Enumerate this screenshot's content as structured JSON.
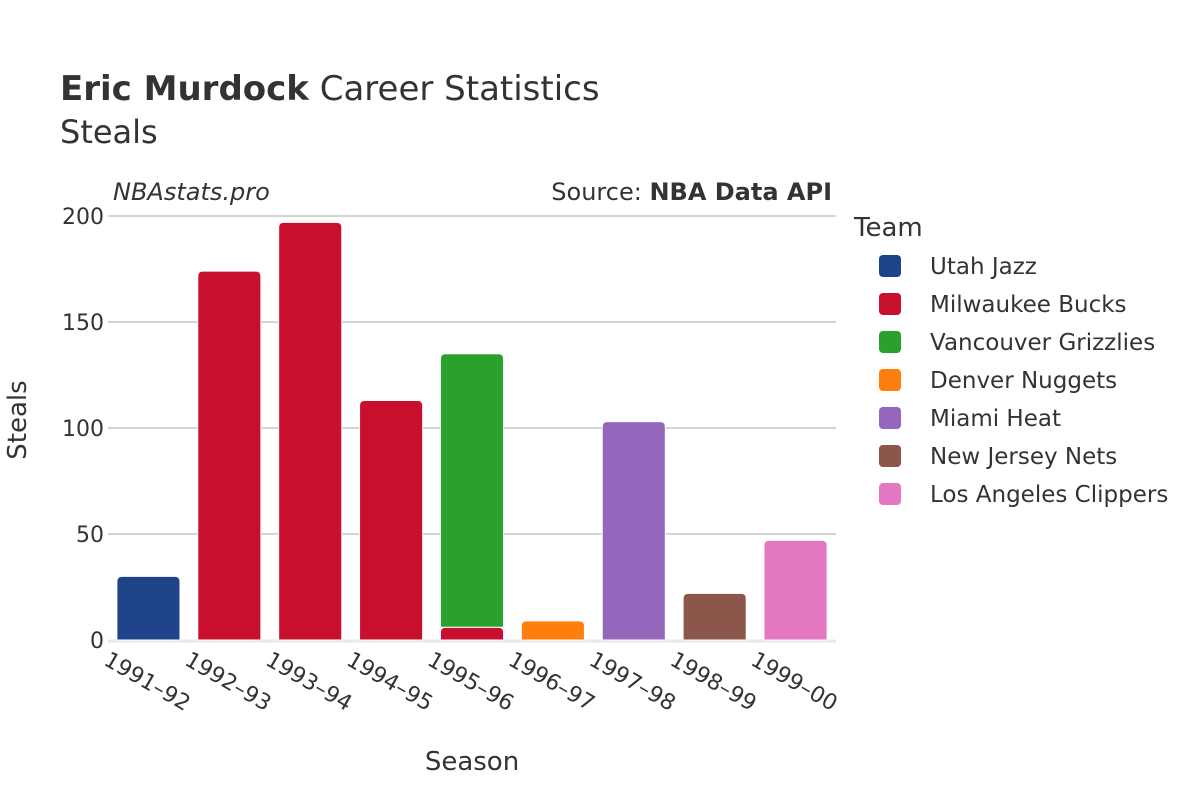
{
  "header": {
    "player_name": "Eric Murdock",
    "title_suffix": " Career Statistics",
    "subtitle": "Steals"
  },
  "watermark": "NBAstats.pro",
  "source": {
    "prefix": "Source: ",
    "name": "NBA Data API"
  },
  "legend_title": "Team",
  "chart_data": {
    "type": "bar",
    "barmode": "stack",
    "title": "Eric Murdock Career Statistics",
    "subtitle": "Steals",
    "xlabel": "Season",
    "ylabel": "Steals",
    "ylim": [
      0,
      200
    ],
    "yticks": [
      0,
      50,
      100,
      150,
      200
    ],
    "grid": true,
    "legend_position": "right",
    "categories": [
      "1991–92",
      "1992–93",
      "1993–94",
      "1994–95",
      "1995–96",
      "1996–97",
      "1997–98",
      "1998–99",
      "1999–00"
    ],
    "series": [
      {
        "name": "Utah Jazz",
        "color": "#1f4389",
        "values": [
          30,
          0,
          0,
          0,
          0,
          0,
          0,
          0,
          0
        ]
      },
      {
        "name": "Milwaukee Bucks",
        "color": "#c8102e",
        "values": [
          0,
          174,
          197,
          113,
          6,
          0,
          0,
          0,
          0
        ]
      },
      {
        "name": "Vancouver Grizzlies",
        "color": "#2ca02c",
        "values": [
          0,
          0,
          0,
          0,
          129,
          0,
          0,
          0,
          0
        ]
      },
      {
        "name": "Denver Nuggets",
        "color": "#ff7f0e",
        "values": [
          0,
          0,
          0,
          0,
          0,
          9,
          0,
          0,
          0
        ]
      },
      {
        "name": "Miami Heat",
        "color": "#9467bd",
        "values": [
          0,
          0,
          0,
          0,
          0,
          0,
          103,
          0,
          0
        ]
      },
      {
        "name": "New Jersey Nets",
        "color": "#8c564b",
        "values": [
          0,
          0,
          0,
          0,
          0,
          0,
          0,
          22,
          0
        ]
      },
      {
        "name": "Los Angeles Clippers",
        "color": "#e377c2",
        "values": [
          0,
          0,
          0,
          0,
          0,
          0,
          0,
          0,
          47
        ]
      }
    ]
  }
}
